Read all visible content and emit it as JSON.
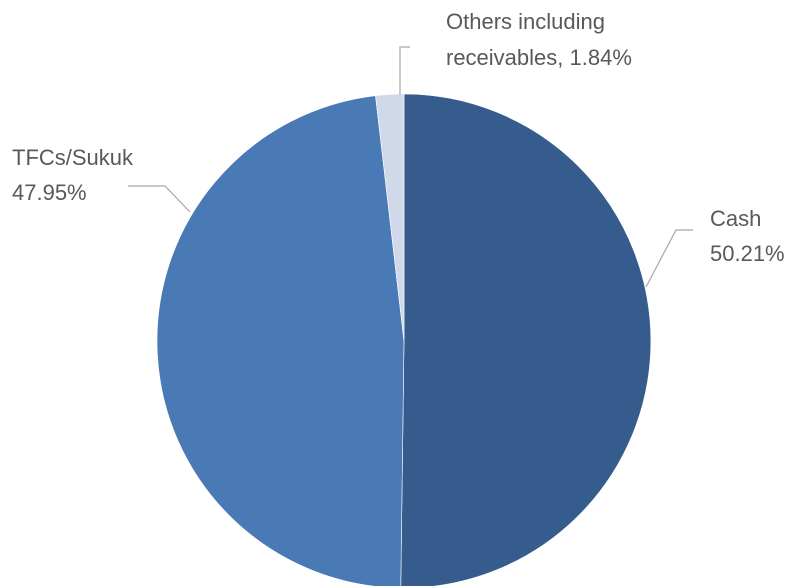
{
  "chart_data": {
    "type": "pie",
    "title": "",
    "slices": [
      {
        "label": "Cash",
        "value": 50.21,
        "display": "50.21%",
        "color": "#355c8c"
      },
      {
        "label": "TFCs/Sukuk",
        "value": 47.95,
        "display": "47.95%",
        "color": "#4a7ab6"
      },
      {
        "label": "Others including receivables",
        "value": 1.84,
        "display": "1.84%",
        "color": "#d0d8ea"
      }
    ],
    "start_angle_deg": 0,
    "direction": "clockwise",
    "legend": "none",
    "labels": {
      "cash_line1": "Cash",
      "cash_line2": "50.21%",
      "tfc_line1": "TFCs/Sukuk",
      "tfc_line2": "47.95%",
      "others_line1": "Others including",
      "others_line2": "receivables, 1.84%"
    }
  }
}
